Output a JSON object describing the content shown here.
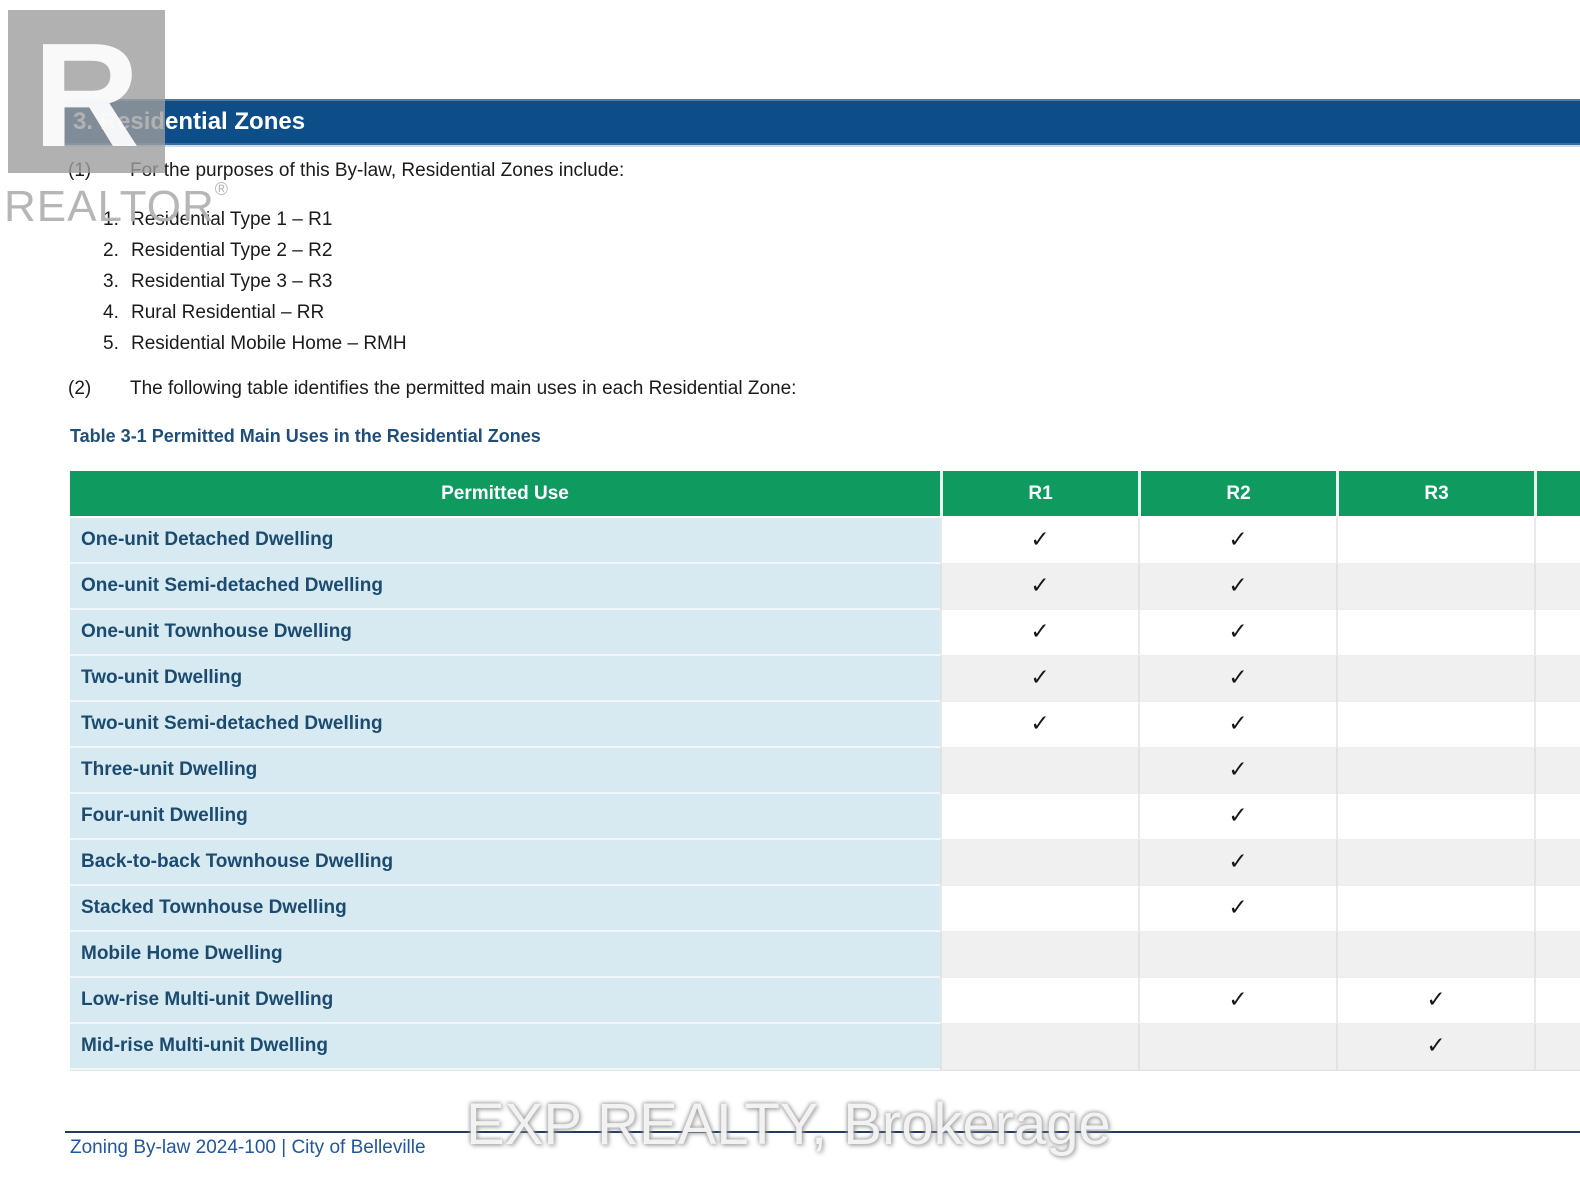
{
  "header": {
    "title": "3. Residential Zones"
  },
  "intro": {
    "num": "(1)",
    "text": "For the purposes of this By-law, Residential Zones include:"
  },
  "zones": [
    {
      "num": "1.",
      "label": "Residential Type 1 – R1"
    },
    {
      "num": "2.",
      "label": "Residential Type 2 – R2"
    },
    {
      "num": "3.",
      "label": "Residential Type 3 – R3"
    },
    {
      "num": "4.",
      "label": "Rural Residential – RR"
    },
    {
      "num": "5.",
      "label": "Residential Mobile Home – RMH"
    }
  ],
  "table_intro": {
    "num": "(2)",
    "text": "The following table identifies the permitted main uses in each Residential Zone:"
  },
  "table": {
    "title": "Table 3-1 Permitted Main Uses in the Residential Zones",
    "columns": [
      "Permitted Use",
      "R1",
      "R2",
      "R3",
      ""
    ],
    "check_glyph": "✓",
    "rows": [
      {
        "use": "One-unit Detached Dwelling",
        "checks": [
          true,
          true,
          false,
          false
        ]
      },
      {
        "use": "One-unit Semi-detached Dwelling",
        "checks": [
          true,
          true,
          false,
          false
        ]
      },
      {
        "use": "One-unit Townhouse Dwelling",
        "checks": [
          true,
          true,
          false,
          false
        ]
      },
      {
        "use": "Two-unit Dwelling",
        "checks": [
          true,
          true,
          false,
          false
        ]
      },
      {
        "use": "Two-unit Semi-detached Dwelling",
        "checks": [
          true,
          true,
          false,
          false
        ]
      },
      {
        "use": "Three-unit Dwelling",
        "checks": [
          false,
          true,
          false,
          false
        ]
      },
      {
        "use": "Four-unit Dwelling",
        "checks": [
          false,
          true,
          false,
          false
        ]
      },
      {
        "use": "Back-to-back Townhouse Dwelling",
        "checks": [
          false,
          true,
          false,
          false
        ]
      },
      {
        "use": "Stacked Townhouse Dwelling",
        "checks": [
          false,
          true,
          false,
          false
        ]
      },
      {
        "use": "Mobile Home Dwelling",
        "checks": [
          false,
          false,
          false,
          false
        ]
      },
      {
        "use": "Low-rise Multi-unit Dwelling",
        "checks": [
          false,
          true,
          true,
          false
        ]
      },
      {
        "use": "Mid-rise Multi-unit Dwelling",
        "checks": [
          false,
          false,
          true,
          false
        ]
      }
    ]
  },
  "footer": {
    "text": "Zoning By-law 2024-100 | City of Belleville"
  },
  "watermarks": {
    "brokerage": "EXP REALTY, Brokerage",
    "realtor_letter": "R",
    "realtor_label": "REALTOR",
    "realtor_reg": "®"
  },
  "colors": {
    "section_bar_blue": "#0d4d88",
    "table_header_green": "#0f9b60",
    "label_cell_blue": "#d7e9f1",
    "alt_row_gray": "#f0f0f0",
    "label_text_navy": "#1c4b70",
    "title_text_navy": "#1f4e79",
    "footer_text_blue": "#2157a0",
    "footer_rule_navy": "#203a64"
  }
}
